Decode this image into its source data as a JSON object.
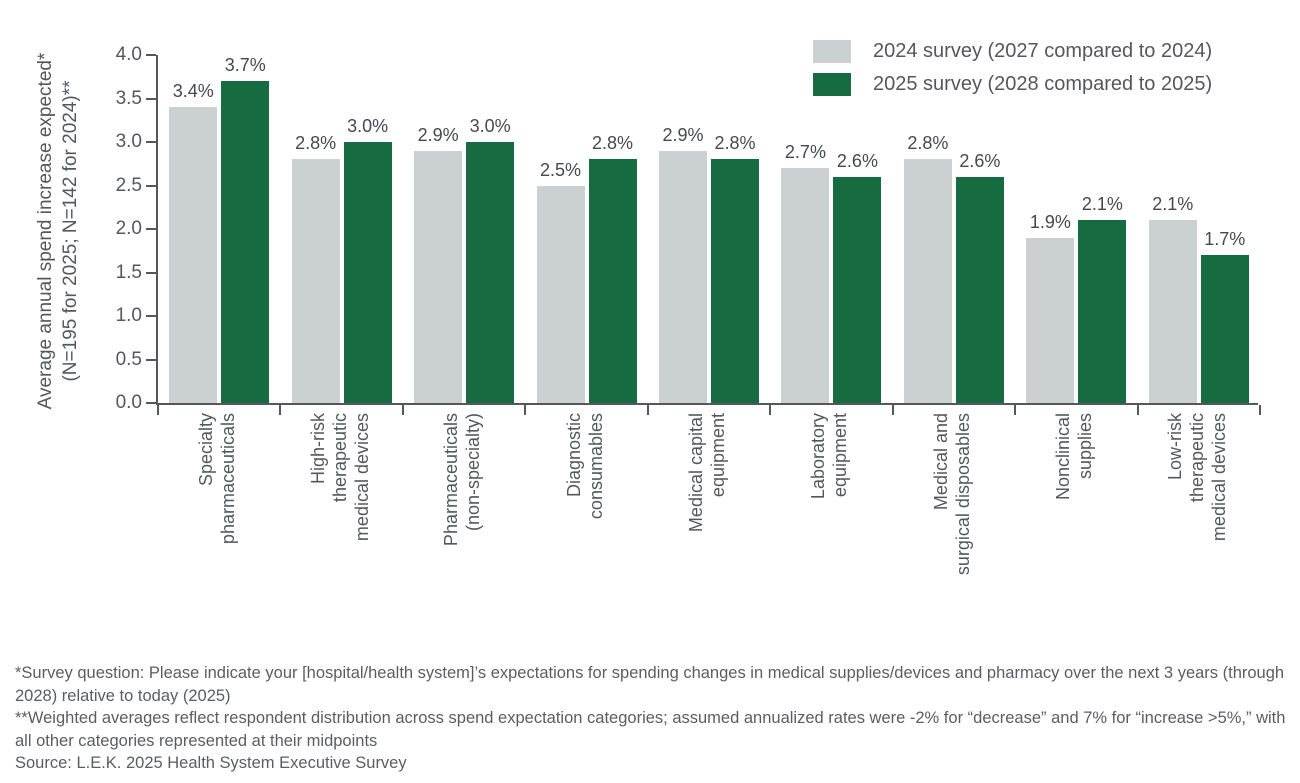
{
  "chart": {
    "ylabel_line1": "Average annual spend increase expected*",
    "ylabel_line2": "(N=195 for 2025; N=142 for 2024)**"
  },
  "chart_data": {
    "type": "bar",
    "title": "",
    "categories": [
      [
        "Specialty",
        "pharmaceuticals"
      ],
      [
        "High-risk",
        "therapeutic",
        "medical devices"
      ],
      [
        "Pharmaceuticals",
        "(non-specialty)"
      ],
      [
        "Diagnostic",
        "consumables"
      ],
      [
        "Medical capital",
        "equipment"
      ],
      [
        "Laboratory",
        "equipment"
      ],
      [
        "Medical and",
        "surgical disposables"
      ],
      [
        "Nonclinical",
        "supplies"
      ],
      [
        "Low-risk",
        "therapeutic",
        "medical devices"
      ]
    ],
    "series": [
      {
        "name": "2024 survey (2027 compared to 2024)",
        "color": "#cad1d0",
        "values": [
          3.4,
          2.8,
          2.9,
          2.5,
          2.9,
          2.7,
          2.8,
          1.9,
          2.1
        ],
        "labels": [
          "3.4%",
          "2.8%",
          "2.9%",
          "2.5%",
          "2.9%",
          "2.7%",
          "2.8%",
          "1.9%",
          "2.1%"
        ]
      },
      {
        "name": "2025 survey (2028 compared to 2025)",
        "color": "#166b40",
        "values": [
          3.7,
          3.0,
          3.0,
          2.8,
          2.8,
          2.6,
          2.6,
          2.1,
          1.7
        ],
        "labels": [
          "3.7%",
          "3.0%",
          "3.0%",
          "2.8%",
          "2.8%",
          "2.6%",
          "2.6%",
          "2.1%",
          "1.7%"
        ]
      }
    ],
    "xlabel": "",
    "ylabel": "Average annual spend increase expected* (N=195 for 2025; N=142 for 2024)**",
    "ylim": [
      0,
      4.0
    ],
    "yticks": [
      "0.0",
      "0.5",
      "1.0",
      "1.5",
      "2.0",
      "2.5",
      "3.0",
      "3.5",
      "4.0"
    ],
    "grid": false,
    "legend_position": "top-right"
  },
  "footnotes": {
    "line1": "*Survey question: Please indicate your [hospital/health system]’s expectations for spending changes in medical supplies/devices and pharmacy over the next 3 years (through 2028) relative to today (2025)",
    "line2": "**Weighted averages reflect respondent distribution across spend expectation categories; assumed annualized rates were -2% for “decrease” and 7% for “increase >5%,” with all other categories represented at their midpoints",
    "source": "Source: L.E.K. 2025 Health System Executive Survey"
  },
  "colors": {
    "series_2024": "#cad1d0",
    "series_2025": "#166b40",
    "axis": "#54585b",
    "text": "#54585b",
    "value_label": "#45494c",
    "footnote": "#595e61",
    "background": "#ffffff"
  }
}
